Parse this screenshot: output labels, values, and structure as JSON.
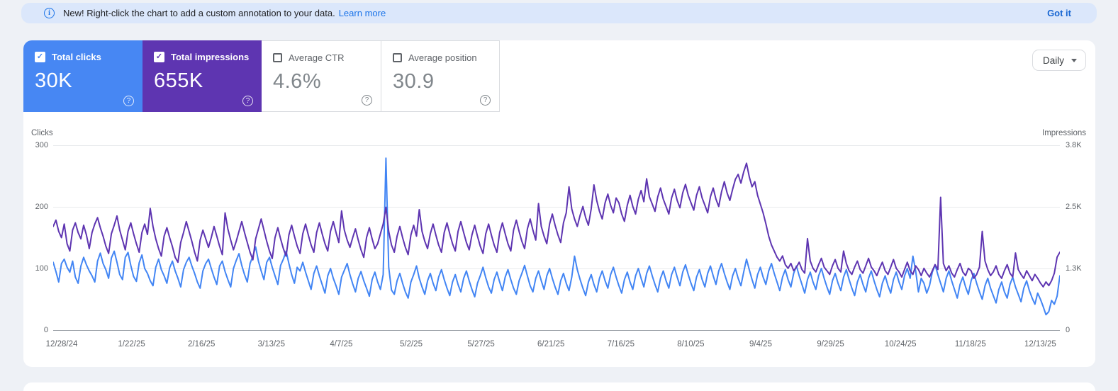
{
  "banner": {
    "text": "New! Right-click the chart to add a custom annotation to your data.",
    "learn_more": "Learn more",
    "got_it": "Got it",
    "background": "#dbe7fb"
  },
  "metrics": [
    {
      "label": "Total clicks",
      "value": "30K",
      "checked": true,
      "color": "#4787f3"
    },
    {
      "label": "Total impressions",
      "value": "655K",
      "checked": true,
      "color": "#5e35b1"
    },
    {
      "label": "Average CTR",
      "value": "4.6%",
      "checked": false,
      "color": "#ffffff"
    },
    {
      "label": "Average position",
      "value": "30.9",
      "checked": false,
      "color": "#ffffff"
    }
  ],
  "controls": {
    "granularity": "Daily"
  },
  "chart_data": {
    "type": "line",
    "grid": true,
    "left_axis": {
      "title": "Clicks",
      "max": 300,
      "ticks": [
        "300",
        "200",
        "100",
        "0"
      ]
    },
    "right_axis": {
      "title": "Impressions",
      "max": 3800,
      "ticks": [
        "3.8K",
        "2.5K",
        "1.3K",
        "0"
      ]
    },
    "x_tick_labels": [
      "12/28/24",
      "1/22/25",
      "2/16/25",
      "3/13/25",
      "4/7/25",
      "5/2/25",
      "5/27/25",
      "6/21/25",
      "7/16/25",
      "8/10/25",
      "9/4/25",
      "9/29/25",
      "10/24/25",
      "11/18/25",
      "12/13/25"
    ],
    "series": [
      {
        "name": "Total clicks",
        "axis": "left",
        "color": "#4285f4",
        "values": [
          110,
          95,
          78,
          108,
          115,
          102,
          94,
          112,
          86,
          76,
          104,
          118,
          106,
          96,
          88,
          78,
          112,
          125,
          108,
          98,
          84,
          117,
          128,
          110,
          90,
          82,
          118,
          126,
          105,
          87,
          79,
          109,
          122,
          100,
          92,
          80,
          72,
          102,
          115,
          98,
          88,
          76,
          101,
          112,
          96,
          84,
          70,
          98,
          110,
          118,
          104,
          92,
          78,
          68,
          96,
          108,
          115,
          100,
          86,
          74,
          104,
          112,
          95,
          82,
          70,
          100,
          113,
          124,
          105,
          90,
          78,
          108,
          120,
          135,
          112,
          96,
          82,
          110,
          118,
          102,
          88,
          74,
          105,
          115,
          128,
          108,
          90,
          76,
          102,
          96,
          110,
          94,
          80,
          66,
          92,
          104,
          88,
          74,
          60,
          88,
          100,
          84,
          72,
          58,
          86,
          97,
          108,
          90,
          75,
          62,
          84,
          95,
          80,
          68,
          55,
          82,
          94,
          78,
          66,
          90,
          279,
          102,
          65,
          58,
          80,
          92,
          76,
          62,
          52,
          78,
          90,
          104,
          84,
          70,
          58,
          80,
          92,
          76,
          64,
          86,
          98,
          82,
          68,
          56,
          78,
          90,
          74,
          62,
          84,
          96,
          80,
          66,
          54,
          76,
          88,
          102,
          85,
          70,
          60,
          82,
          94,
          78,
          64,
          86,
          98,
          82,
          68,
          58,
          80,
          92,
          105,
          88,
          72,
          62,
          84,
          96,
          80,
          66,
          88,
          100,
          84,
          70,
          58,
          80,
          92,
          76,
          64,
          86,
          120,
          98,
          82,
          68,
          56,
          78,
          90,
          74,
          62,
          84,
          96,
          80,
          68,
          90,
          102,
          86,
          72,
          60,
          82,
          94,
          78,
          66,
          88,
          100,
          84,
          70,
          92,
          104,
          88,
          74,
          62,
          84,
          96,
          80,
          68,
          90,
          102,
          86,
          72,
          94,
          106,
          90,
          76,
          64,
          86,
          98,
          82,
          70,
          92,
          104,
          88,
          74,
          96,
          108,
          92,
          78,
          66,
          88,
          100,
          84,
          72,
          94,
          115,
          98,
          82,
          68,
          90,
          102,
          86,
          74,
          96,
          108,
          92,
          78,
          64,
          86,
          98,
          82,
          70,
          92,
          104,
          88,
          74,
          60,
          82,
          94,
          78,
          66,
          88,
          100,
          84,
          70,
          58,
          80,
          92,
          76,
          64,
          86,
          98,
          82,
          68,
          56,
          78,
          90,
          74,
          62,
          84,
          96,
          80,
          66,
          54,
          76,
          88,
          72,
          60,
          82,
          94,
          78,
          66,
          88,
          100,
          84,
          120,
          96,
          62,
          84,
          76,
          60,
          72,
          94,
          106,
          90,
          76,
          62,
          84,
          96,
          80,
          66,
          52,
          74,
          86,
          70,
          58,
          80,
          92,
          76,
          62,
          50,
          72,
          84,
          68,
          56,
          44,
          66,
          78,
          62,
          52,
          74,
          86,
          70,
          58,
          46,
          68,
          80,
          64,
          52,
          42,
          60,
          50,
          38,
          25,
          30,
          48,
          42,
          55,
          88
        ]
      },
      {
        "name": "Total impressions",
        "axis": "right",
        "color": "#5e35b1",
        "values": [
          2130,
          2260,
          2030,
          1900,
          2180,
          1775,
          1625,
          2055,
          2205,
          2005,
          1875,
          2155,
          1955,
          1675,
          2005,
          2180,
          2310,
          2105,
          1930,
          1725,
          1575,
          1980,
          2155,
          2345,
          2055,
          1850,
          1650,
          2030,
          2205,
          1980,
          1775,
          1600,
          2005,
          2180,
          1965,
          2500,
          2130,
          1875,
          1675,
          1520,
          1930,
          2105,
          1900,
          1715,
          1495,
          1395,
          1800,
          2005,
          2230,
          2030,
          1825,
          1600,
          1420,
          1850,
          2055,
          1875,
          1700,
          1900,
          2130,
          1930,
          1725,
          1550,
          2410,
          2080,
          1850,
          1650,
          1825,
          2030,
          2230,
          2005,
          1800,
          1600,
          1445,
          1875,
          2080,
          2285,
          2055,
          1825,
          1625,
          1470,
          1900,
          2105,
          1875,
          1675,
          1520,
          1955,
          2155,
          1930,
          1725,
          1575,
          1980,
          2180,
          1955,
          1750,
          1600,
          2005,
          2205,
          1980,
          1775,
          1625,
          2030,
          2230,
          2005,
          1800,
          2450,
          2055,
          1850,
          1700,
          1900,
          2080,
          1850,
          1650,
          1495,
          1900,
          2105,
          1875,
          1675,
          1775,
          1980,
          2180,
          2525,
          2030,
          1750,
          1600,
          1930,
          2130,
          1900,
          1700,
          1550,
          1955,
          2155,
          1930,
          2475,
          2030,
          1825,
          1675,
          1980,
          2180,
          1955,
          1750,
          1600,
          2005,
          2205,
          1980,
          1775,
          1625,
          2030,
          2230,
          2005,
          1800,
          1650,
          1955,
          2155,
          1930,
          1725,
          1575,
          1980,
          2180,
          1955,
          1750,
          1600,
          2005,
          2205,
          1980,
          1775,
          1625,
          2055,
          2260,
          2030,
          1825,
          1675,
          2080,
          2285,
          2055,
          1850,
          2600,
          2130,
          1930,
          1775,
          2180,
          2385,
          2155,
          1955,
          1800,
          2205,
          2410,
          2945,
          2490,
          2285,
          2130,
          2360,
          2540,
          2310,
          2155,
          2490,
          2985,
          2665,
          2440,
          2285,
          2615,
          2795,
          2565,
          2410,
          2715,
          2615,
          2385,
          2235,
          2565,
          2770,
          2540,
          2385,
          2690,
          2870,
          2640,
          3110,
          2740,
          2590,
          2440,
          2740,
          2920,
          2690,
          2540,
          2385,
          2715,
          2895,
          2665,
          2515,
          2820,
          2995,
          2770,
          2615,
          2465,
          2770,
          2945,
          2715,
          2565,
          2410,
          2740,
          2920,
          2690,
          2540,
          2845,
          3050,
          2820,
          2665,
          2895,
          3100,
          3200,
          3020,
          3250,
          3430,
          3150,
          2945,
          3050,
          2770,
          2590,
          2410,
          2185,
          1930,
          1750,
          1625,
          1500,
          1420,
          1525,
          1345,
          1270,
          1370,
          1220,
          1295,
          1395,
          1245,
          1170,
          1880,
          1420,
          1270,
          1195,
          1345,
          1475,
          1295,
          1220,
          1145,
          1320,
          1450,
          1270,
          1195,
          1625,
          1370,
          1220,
          1145,
          1295,
          1420,
          1245,
          1170,
          1320,
          1475,
          1295,
          1220,
          1120,
          1270,
          1395,
          1220,
          1145,
          1295,
          1450,
          1270,
          1195,
          1090,
          1245,
          1395,
          1220,
          1145,
          1320,
          1245,
          1120,
          1270,
          1170,
          1090,
          1220,
          1345,
          1245,
          2730,
          1370,
          1220,
          1320,
          1170,
          1090,
          1245,
          1370,
          1195,
          1120,
          1270,
          1220,
          1065,
          1145,
          1295,
          2030,
          1420,
          1245,
          1120,
          1195,
          1320,
          1145,
          1065,
          1220,
          1345,
          1170,
          1090,
          1585,
          1245,
          1145,
          1065,
          1220,
          1120,
          1015,
          1145,
          1065,
          965,
          890,
          990,
          915,
          1015,
          1170,
          1500,
          1600
        ]
      }
    ]
  }
}
